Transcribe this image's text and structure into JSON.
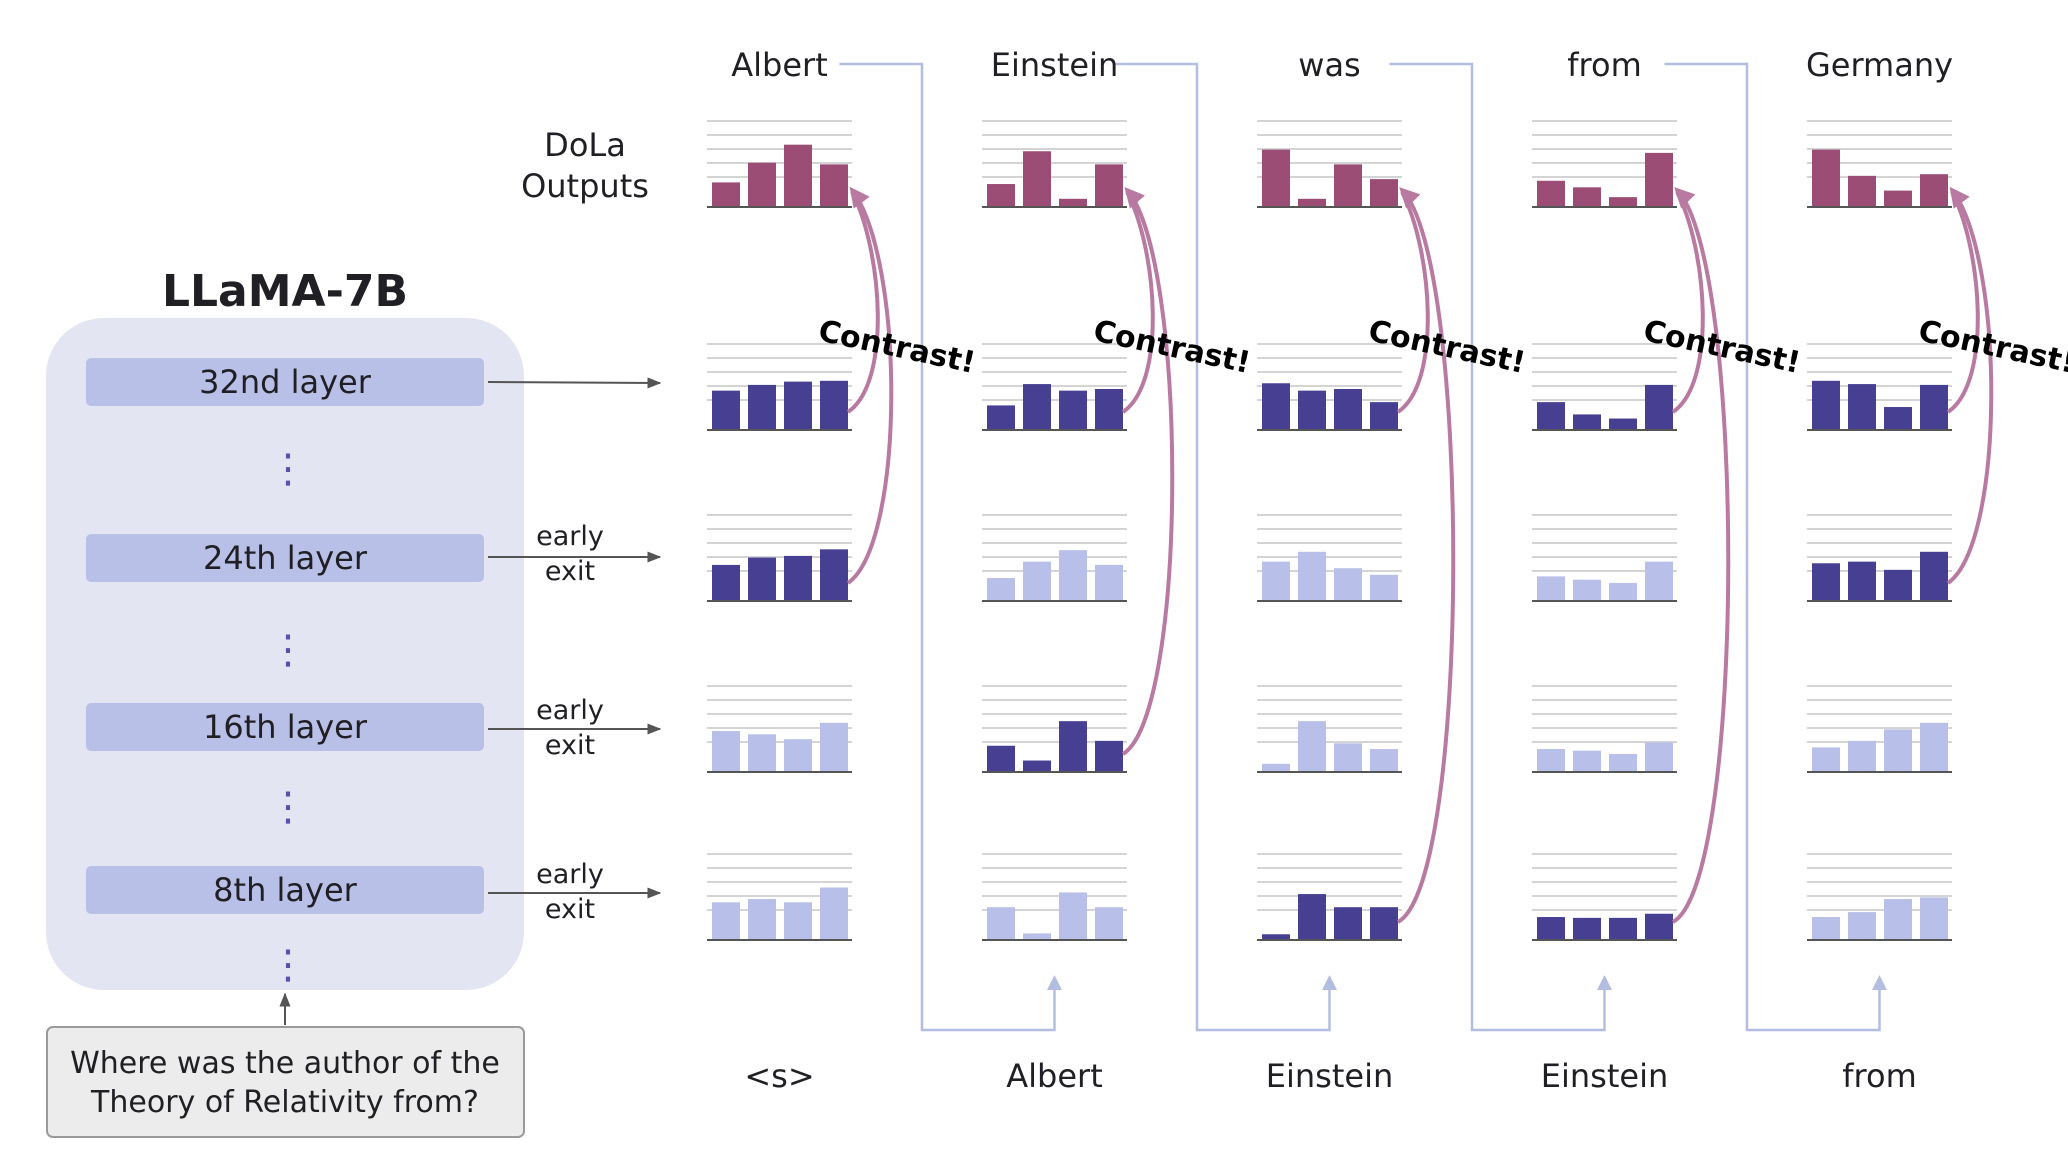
{
  "model": {
    "title": "LLaMA-7B",
    "layers": [
      {
        "label": "32nd layer",
        "exit_label": []
      },
      {
        "label": "24th layer",
        "exit_label": [
          "early",
          "exit"
        ]
      },
      {
        "label": "16th layer",
        "exit_label": [
          "early",
          "exit"
        ]
      },
      {
        "label": "8th layer",
        "exit_label": [
          "early",
          "exit"
        ]
      }
    ],
    "ellipsis": "⋮",
    "question": [
      "Where was the author of the",
      "Theory of Relativity from?"
    ]
  },
  "dola_label": [
    "DoLa",
    "Outputs"
  ],
  "contrast_label": "Contrast!",
  "colors": {
    "output": "#9b4d75",
    "active": "#463f92",
    "inactive": "#b8bfe8",
    "layer_box": "#b9c0e8",
    "panel": "#e3e5f3",
    "arrow": "#b97aa1",
    "connector": "#b3bde0"
  },
  "steps": [
    {
      "output_token": "Albert",
      "input_token": "<s>",
      "output_bars": [
        0.3,
        0.54,
        0.76,
        0.52
      ],
      "contrast_layer": 1,
      "layers": [
        {
          "bars": [
            0.48,
            0.55,
            0.59,
            0.6
          ]
        },
        {
          "bars": [
            0.44,
            0.53,
            0.55,
            0.63
          ]
        },
        {
          "bars": [
            0.5,
            0.46,
            0.4,
            0.6
          ]
        },
        {
          "bars": [
            0.46,
            0.5,
            0.46,
            0.64
          ]
        }
      ]
    },
    {
      "output_token": "Einstein",
      "input_token": "Albert",
      "output_bars": [
        0.28,
        0.68,
        0.1,
        0.52
      ],
      "contrast_layer": 2,
      "layers": [
        {
          "bars": [
            0.3,
            0.56,
            0.48,
            0.5
          ]
        },
        {
          "bars": [
            0.28,
            0.48,
            0.62,
            0.44
          ]
        },
        {
          "bars": [
            0.32,
            0.14,
            0.62,
            0.38
          ]
        },
        {
          "bars": [
            0.4,
            0.08,
            0.58,
            0.4
          ]
        }
      ]
    },
    {
      "output_token": "was",
      "input_token": "Einstein",
      "output_bars": [
        0.7,
        0.1,
        0.52,
        0.34
      ],
      "contrast_layer": 3,
      "layers": [
        {
          "bars": [
            0.57,
            0.48,
            0.5,
            0.34
          ]
        },
        {
          "bars": [
            0.48,
            0.6,
            0.4,
            0.32
          ]
        },
        {
          "bars": [
            0.1,
            0.62,
            0.35,
            0.28
          ]
        },
        {
          "bars": [
            0.07,
            0.56,
            0.4,
            0.4
          ]
        }
      ]
    },
    {
      "output_token": "from",
      "input_token": "Einstein",
      "output_bars": [
        0.32,
        0.24,
        0.12,
        0.66
      ],
      "contrast_layer": 3,
      "layers": [
        {
          "bars": [
            0.34,
            0.19,
            0.14,
            0.55
          ]
        },
        {
          "bars": [
            0.3,
            0.26,
            0.22,
            0.48
          ]
        },
        {
          "bars": [
            0.28,
            0.26,
            0.22,
            0.36
          ]
        },
        {
          "bars": [
            0.28,
            0.27,
            0.27,
            0.32
          ]
        }
      ]
    },
    {
      "output_token": "Germany",
      "input_token": "from",
      "output_bars": [
        0.7,
        0.38,
        0.2,
        0.4
      ],
      "contrast_layer": 1,
      "layers": [
        {
          "bars": [
            0.6,
            0.56,
            0.28,
            0.55
          ]
        },
        {
          "bars": [
            0.46,
            0.48,
            0.38,
            0.6
          ]
        },
        {
          "bars": [
            0.3,
            0.38,
            0.52,
            0.6
          ]
        },
        {
          "bars": [
            0.28,
            0.34,
            0.5,
            0.52
          ]
        }
      ]
    }
  ]
}
